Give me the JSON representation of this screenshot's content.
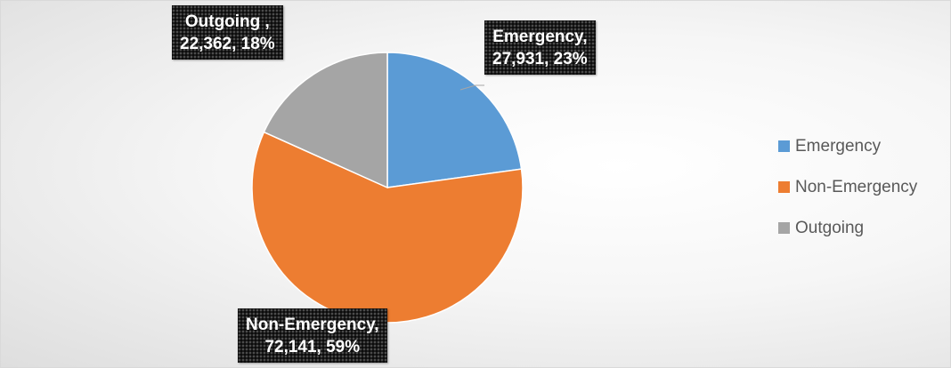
{
  "chart_data": {
    "type": "pie",
    "title": "",
    "categories": [
      "Emergency",
      "Non-Emergency",
      "Outgoing"
    ],
    "values": [
      27931,
      72141,
      22362
    ],
    "percentages": [
      23,
      59,
      18
    ],
    "colors": [
      "#5b9bd5",
      "#ed7d31",
      "#a5a5a5"
    ],
    "start_angle_deg": 0,
    "direction": "clockwise",
    "data_labels": [
      {
        "line1": "Emergency,",
        "line2": "27,931, 23%"
      },
      {
        "line1": "Non-Emergency,",
        "line2": "72,141, 59%"
      },
      {
        "line1": "Outgoing ,",
        "line2": "22,362, 18%"
      }
    ],
    "legend": {
      "placement": "right",
      "entries": [
        "Emergency",
        "Non-Emergency",
        "Outgoing"
      ]
    }
  }
}
